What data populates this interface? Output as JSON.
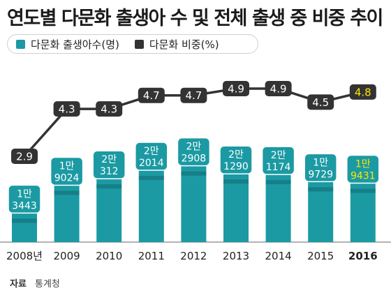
{
  "title": "연도별 다문화 출생아 수 및 전체 출생 중 비중 추이",
  "legend": [
    {
      "label": "다문화 출생아수(명)",
      "color": "#1b9aa3"
    },
    {
      "label": "다문화 비중(%)",
      "color": "#333333"
    }
  ],
  "source": {
    "label": "자료",
    "text": "통계청"
  },
  "colors": {
    "bar": "#1b9aa3",
    "bar_dark": "#147d85",
    "bar_shadow": "#126a71",
    "label_box": "#1b9aa3",
    "highlight_text": "#ffe600",
    "line": "#333333",
    "marker": "#333333",
    "highlight_marker": "#333333"
  },
  "chart_data": {
    "type": "bar",
    "categories": [
      "2008년",
      "2009",
      "2010",
      "2011",
      "2012",
      "2013",
      "2014",
      "2015",
      "2016"
    ],
    "series": [
      {
        "name": "다문화 출생아수(명)",
        "values": [
          13443,
          19024,
          20312,
          22014,
          22908,
          21290,
          21174,
          19729,
          19431
        ],
        "labels": [
          [
            "1만",
            "3443"
          ],
          [
            "1만",
            "9024"
          ],
          [
            "2만",
            "312"
          ],
          [
            "2만",
            "2014"
          ],
          [
            "2만",
            "2908"
          ],
          [
            "2만",
            "1290"
          ],
          [
            "2만",
            "1174"
          ],
          [
            "1만",
            "9729"
          ],
          [
            "1만",
            "9431"
          ]
        ]
      },
      {
        "name": "다문화 비중(%)",
        "type": "line",
        "values": [
          2.9,
          4.3,
          4.3,
          4.7,
          4.7,
          4.9,
          4.9,
          4.5,
          4.8
        ],
        "labels": [
          "2.9",
          "4.3",
          "4.3",
          "4.7",
          "4.7",
          "4.9",
          "4.9",
          "4.5",
          "4.8"
        ]
      }
    ],
    "highlight_index": 8
  }
}
